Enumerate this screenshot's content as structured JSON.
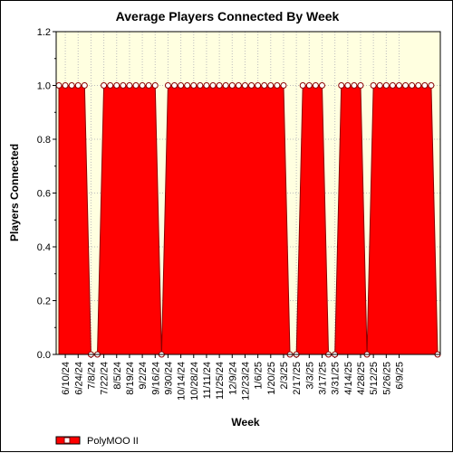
{
  "chart_data": {
    "type": "area",
    "title": "Average Players Connected By Week",
    "xlabel": "Week",
    "ylabel": "Players Connected",
    "ylim": [
      0,
      1.2
    ],
    "yticks": [
      0.0,
      0.2,
      0.4,
      0.6,
      0.8,
      1.0,
      1.2
    ],
    "ytick_labels": [
      "0.0",
      "0.2",
      "0.4",
      "0.6",
      "0.8",
      "1.0",
      "1.2"
    ],
    "x_tick_labels": [
      "6/10/24",
      "6/24/24",
      "7/8/24",
      "7/22/24",
      "8/5/24",
      "8/19/24",
      "9/2/24",
      "9/16/24",
      "9/30/24",
      "10/14/24",
      "10/28/24",
      "11/11/24",
      "11/25/24",
      "12/9/24",
      "12/23/24",
      "1/6/25",
      "1/20/25",
      "2/3/25",
      "2/17/25",
      "3/3/25",
      "3/17/25",
      "3/31/25",
      "4/14/25",
      "4/28/25",
      "5/12/25",
      "5/26/25",
      "6/9/25"
    ],
    "grid": true,
    "legend_position": "bottom-left",
    "colors": {
      "fill": "#ff0000",
      "outline": "#8b0000",
      "plot_bg": "#ffffe0",
      "grid": "#bdbdbd",
      "marker_fill": "#ffffff"
    },
    "series": [
      {
        "name": "PolyMOO II",
        "values": [
          1,
          1,
          1,
          1,
          1,
          0,
          0,
          1,
          1,
          1,
          1,
          1,
          1,
          1,
          1,
          1,
          0,
          1,
          1,
          1,
          1,
          1,
          1,
          1,
          1,
          1,
          1,
          1,
          1,
          1,
          1,
          1,
          1,
          1,
          1,
          1,
          0,
          0,
          1,
          1,
          1,
          1,
          0,
          0,
          1,
          1,
          1,
          1,
          0,
          1,
          1,
          1,
          1,
          1,
          1,
          1,
          1,
          1,
          1,
          0
        ]
      }
    ]
  }
}
